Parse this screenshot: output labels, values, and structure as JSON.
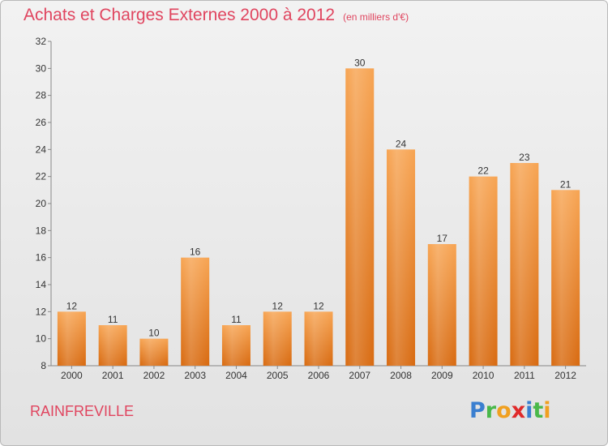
{
  "title": "Achats et Charges Externes 2000 à 2012",
  "unit": "(en milliers d'€)",
  "commune": "RAINFREVILLE",
  "logo": {
    "letters": [
      "P",
      "r",
      "o",
      "x",
      "i",
      "t",
      "i"
    ],
    "colors": [
      "#3a7fd0",
      "#49b84a",
      "#f0a020",
      "#e02a2a",
      "#3a7fd0",
      "#49b84a",
      "#f0a020"
    ]
  },
  "chart_data": {
    "type": "bar",
    "title": "Achats et Charges Externes 2000 à 2012",
    "categories": [
      "2000",
      "2001",
      "2002",
      "2003",
      "2004",
      "2005",
      "2006",
      "2007",
      "2008",
      "2009",
      "2010",
      "2011",
      "2012"
    ],
    "values": [
      12,
      11,
      10,
      16,
      11,
      12,
      12,
      30,
      24,
      17,
      22,
      23,
      21
    ],
    "ylim": [
      8,
      32
    ],
    "yticks": [
      8,
      10,
      12,
      14,
      16,
      18,
      20,
      22,
      24,
      26,
      28,
      30,
      32
    ],
    "grid": false,
    "bar_color": "#f0922e",
    "xlabel": "",
    "ylabel": ""
  }
}
